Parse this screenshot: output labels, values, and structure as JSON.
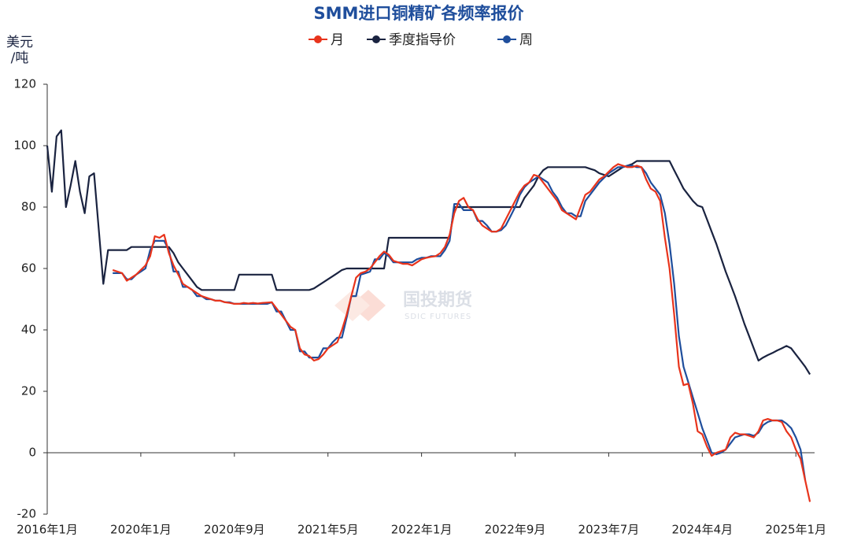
{
  "chart_data": {
    "type": "line",
    "title": "SMM进口铜精矿各频率报价",
    "y_label": "美元\n/吨",
    "watermark": [
      "国投期货",
      "SDIC FUTURES"
    ],
    "categories": [
      "2016年1月",
      null,
      null,
      null,
      null,
      null,
      null,
      null,
      null,
      null,
      null,
      null,
      null,
      null,
      null,
      null,
      null,
      null,
      null,
      null,
      "2020年1月",
      null,
      null,
      null,
      null,
      null,
      null,
      null,
      null,
      null,
      null,
      null,
      null,
      null,
      null,
      null,
      null,
      null,
      null,
      null,
      "2020年9月",
      null,
      null,
      null,
      null,
      null,
      null,
      null,
      null,
      null,
      null,
      null,
      null,
      null,
      null,
      null,
      null,
      null,
      null,
      null,
      "2021年5月",
      null,
      null,
      null,
      null,
      null,
      null,
      null,
      null,
      null,
      null,
      null,
      null,
      null,
      null,
      null,
      null,
      null,
      null,
      null,
      "2022年1月",
      null,
      null,
      null,
      null,
      null,
      null,
      null,
      null,
      null,
      null,
      null,
      null,
      null,
      null,
      null,
      null,
      null,
      null,
      null,
      "2022年9月",
      null,
      null,
      null,
      null,
      null,
      null,
      null,
      null,
      null,
      null,
      null,
      null,
      null,
      null,
      null,
      null,
      null,
      null,
      null,
      "2023年7月",
      null,
      null,
      null,
      null,
      null,
      null,
      null,
      null,
      null,
      null,
      null,
      null,
      null,
      null,
      null,
      null,
      null,
      null,
      null,
      "2024年4月",
      null,
      null,
      null,
      null,
      null,
      null,
      null,
      null,
      null,
      null,
      null,
      null,
      null,
      null,
      null,
      null,
      null,
      null,
      null,
      "2025年1月",
      null,
      null,
      null,
      null
    ],
    "series": [
      {
        "name": "月",
        "color": "#e8341c",
        "values": [
          null,
          null,
          null,
          null,
          null,
          null,
          null,
          null,
          null,
          null,
          null,
          null,
          null,
          null,
          59.5,
          59,
          58.5,
          56,
          57,
          58,
          59.5,
          61,
          64,
          70.5,
          70,
          71,
          65,
          61,
          58,
          55,
          54,
          53,
          52,
          51,
          50.5,
          50,
          49.5,
          49.5,
          49,
          48.8,
          48.5,
          48.5,
          48.8,
          48.6,
          48.8,
          48.6,
          48.8,
          48.9,
          49,
          47,
          45,
          43,
          41,
          40,
          34,
          32,
          31.5,
          30,
          30.5,
          32,
          34,
          35,
          36,
          40,
          45,
          51,
          57,
          58.5,
          59,
          60,
          62,
          64,
          65.5,
          64.5,
          62.5,
          62,
          61.5,
          61.5,
          61,
          62,
          63,
          63.5,
          63.8,
          64,
          65,
          67,
          71,
          78,
          82,
          83,
          80,
          79,
          76,
          74,
          73,
          72,
          72,
          73,
          76,
          79,
          82,
          85,
          87,
          88,
          90.5,
          90,
          88,
          86,
          84,
          82,
          79,
          78,
          77,
          76,
          80,
          84,
          85,
          87,
          89,
          90,
          91.5,
          93,
          94,
          93.5,
          93,
          93,
          93.5,
          93,
          89,
          86,
          85,
          82,
          70,
          60,
          45,
          28,
          22,
          22.5,
          16,
          7,
          6,
          2,
          -1,
          0,
          0.5,
          1,
          5,
          6.5,
          6,
          6,
          5.5,
          5,
          7,
          10.5,
          11,
          10.5,
          10.5,
          10,
          7,
          5,
          1,
          -2,
          -9,
          -16,
          null
        ]
      },
      {
        "name": "季度指导价",
        "color": "#1a2340",
        "values": [
          100,
          85,
          103,
          105,
          80,
          87,
          95,
          85,
          78,
          90,
          91,
          73,
          55,
          66,
          66,
          66,
          66,
          66,
          67,
          67,
          67,
          67,
          67,
          67,
          67,
          67,
          67,
          65,
          62,
          60,
          58,
          56,
          54,
          53,
          53,
          53,
          53,
          53,
          53,
          53,
          53,
          58,
          58,
          58,
          58,
          58,
          58,
          58,
          58,
          53,
          53,
          53,
          53,
          53,
          53,
          53,
          53,
          53.5,
          54.5,
          55.5,
          56.5,
          57.5,
          58.5,
          59.5,
          60,
          60,
          60,
          60,
          60,
          60,
          60,
          60,
          60,
          70,
          70,
          70,
          70,
          70,
          70,
          70,
          70,
          70,
          70,
          70,
          70,
          70,
          70,
          80,
          80,
          80,
          80,
          80,
          80,
          80,
          80,
          80,
          80,
          80,
          80,
          80,
          80,
          80,
          83,
          85,
          87,
          90,
          92,
          93,
          93,
          93,
          93,
          93,
          93,
          93,
          93,
          93,
          92.5,
          92,
          91,
          90.5,
          90,
          91,
          92,
          93,
          93.5,
          94,
          95,
          95,
          95,
          95,
          95,
          95,
          95,
          95,
          92,
          89,
          86,
          84,
          82,
          80.5,
          80,
          76,
          72,
          68,
          63.5,
          59,
          55,
          51,
          46.5,
          42,
          38,
          34,
          30,
          31,
          31.8,
          32.5,
          33.3,
          34,
          34.8,
          34,
          32,
          30,
          28,
          25.5,
          null
        ]
      },
      {
        "name": "周",
        "color": "#1f4e9c",
        "values": [
          null,
          null,
          null,
          null,
          null,
          null,
          null,
          null,
          null,
          null,
          null,
          null,
          null,
          null,
          58.5,
          58.5,
          58.5,
          56.5,
          56.5,
          58,
          59,
          60,
          66,
          69,
          69,
          69,
          66,
          59,
          59,
          54,
          54,
          53,
          51,
          51,
          50,
          50,
          49.5,
          49.5,
          49,
          49,
          48.5,
          48.5,
          48.5,
          48.5,
          48.5,
          48.5,
          48.5,
          48.5,
          49,
          46,
          46,
          43,
          40,
          40,
          33,
          33,
          31,
          31,
          31,
          34,
          34,
          36,
          37.5,
          37.5,
          44,
          51,
          51,
          58,
          58.5,
          59,
          63,
          63,
          65,
          64,
          62,
          62,
          62,
          62,
          62,
          63,
          63.5,
          63.5,
          64,
          64,
          64,
          66,
          69,
          81,
          81,
          79,
          79,
          79,
          75.5,
          75.5,
          74,
          72,
          72,
          72.5,
          74,
          77,
          80,
          84,
          86.5,
          88,
          89,
          90,
          89,
          88,
          85,
          83,
          80,
          78,
          78,
          77,
          77,
          82,
          84,
          86,
          88,
          89.5,
          91,
          92,
          93,
          93,
          93.5,
          93.5,
          93,
          93,
          91,
          88,
          86,
          84,
          78,
          68,
          55,
          38,
          28,
          23,
          18,
          13,
          8,
          4,
          0,
          -0.5,
          0,
          1,
          3,
          5,
          5.5,
          6,
          6,
          5.5,
          6.5,
          9,
          10,
          10.5,
          10.5,
          10.5,
          9.5,
          8,
          5,
          1,
          -9,
          null,
          null
        ]
      }
    ],
    "ylim": [
      -20,
      120
    ],
    "yticks": [
      -20,
      0,
      20,
      40,
      60,
      80,
      100,
      120
    ]
  }
}
